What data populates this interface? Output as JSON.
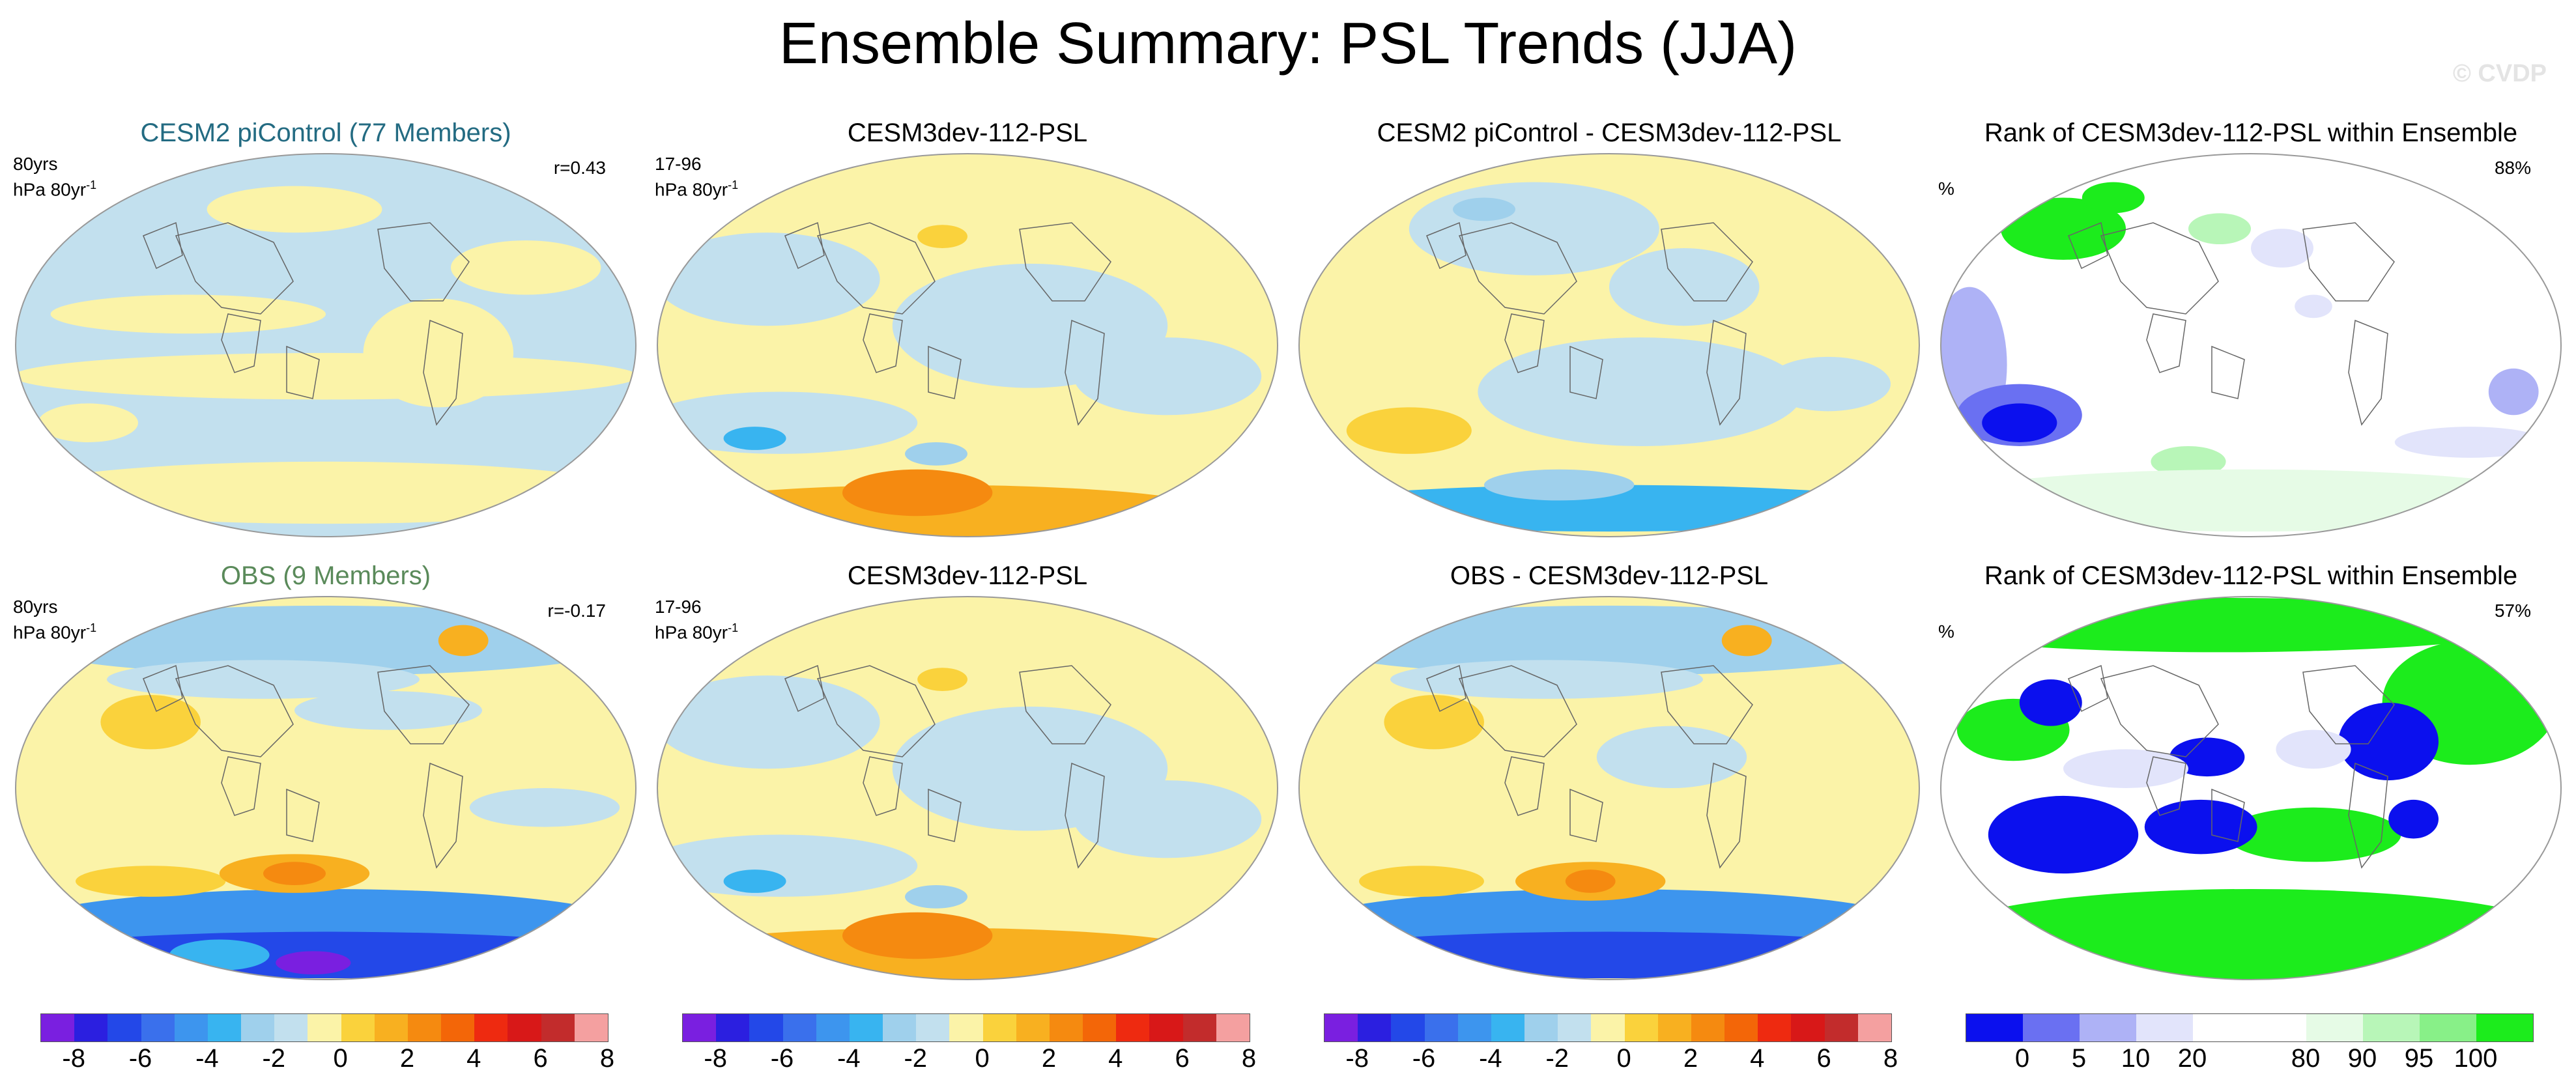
{
  "title": "Ensemble Summary: PSL Trends (JJA)",
  "watermark": "© CVDP",
  "chart_data": [
    {
      "type": "heatmap",
      "title": "CESM2 piControl (77 Members)",
      "title_color": "#236b82",
      "left_top": "80yrs",
      "left_units": "hPa 80yr",
      "units_sup": "-1",
      "right_top": "r=0.43",
      "pattern": "ens"
    },
    {
      "type": "heatmap",
      "title": "CESM3dev-112-PSL",
      "left_top": "17-96",
      "left_units": "hPa 80yr",
      "units_sup": "-1",
      "right_top": "",
      "pattern": "model"
    },
    {
      "type": "heatmap",
      "title": "CESM2 piControl - CESM3dev-112-PSL",
      "left_top": "",
      "left_units": "",
      "units_sup": "",
      "right_top": "",
      "pattern": "diff1"
    },
    {
      "type": "heatmap",
      "title": "Rank of CESM3dev-112-PSL within Ensemble",
      "left_top": "%",
      "left_units": "",
      "units_sup": "",
      "right_top": "88%",
      "pattern": "rank1"
    },
    {
      "type": "heatmap",
      "title": "OBS (9 Members)",
      "title_color": "#5a8a5a",
      "left_top": "80yrs",
      "left_units": "hPa 80yr",
      "units_sup": "-1",
      "right_top": "r=-0.17",
      "pattern": "obs"
    },
    {
      "type": "heatmap",
      "title": "CESM3dev-112-PSL",
      "left_top": "17-96",
      "left_units": "hPa 80yr",
      "units_sup": "-1",
      "right_top": "",
      "pattern": "model"
    },
    {
      "type": "heatmap",
      "title": "OBS - CESM3dev-112-PSL",
      "left_top": "",
      "left_units": "",
      "units_sup": "",
      "right_top": "",
      "pattern": "diff2"
    },
    {
      "type": "heatmap",
      "title": "Rank of CESM3dev-112-PSL within Ensemble",
      "left_top": "%",
      "left_units": "",
      "units_sup": "",
      "right_top": "57%",
      "pattern": "rank2"
    }
  ],
  "psl_colorbar": {
    "colors": [
      "#7a1fe0",
      "#2b1fe0",
      "#2348e8",
      "#3a70ec",
      "#3d95ee",
      "#38b4f0",
      "#9fd0ec",
      "#c2e0ee",
      "#fbf3a8",
      "#fad23c",
      "#f8b020",
      "#f58a10",
      "#f36608",
      "#ee2a10",
      "#d81818",
      "#c22c2c",
      "#f4a0a0"
    ],
    "ticks": [
      "-8",
      "-6",
      "-4",
      "-2",
      "0",
      "2",
      "4",
      "6",
      "8"
    ]
  },
  "rank_colorbar": {
    "colors": [
      "#0b10ee",
      "#6a70f2",
      "#aeb2f6",
      "#e2e4fb",
      "#ffffff",
      "#ffffff",
      "#e6fbe6",
      "#b8f6b8",
      "#88f088",
      "#1cec1c"
    ],
    "ticks": [
      "0",
      "5",
      "10",
      "20",
      "80",
      "90",
      "95",
      "100"
    ]
  }
}
